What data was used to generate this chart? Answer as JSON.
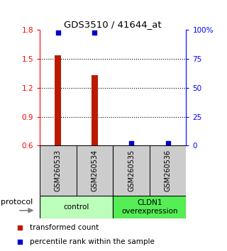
{
  "title": "GDS3510 / 41644_at",
  "samples": [
    "GSM260533",
    "GSM260534",
    "GSM260535",
    "GSM260536"
  ],
  "bar_values": [
    1.535,
    1.33,
    0.605,
    0.605
  ],
  "dot_pcts": [
    0.98,
    0.98,
    0.02,
    0.02
  ],
  "ylim": [
    0.6,
    1.8
  ],
  "yticks_left": [
    0.6,
    0.9,
    1.2,
    1.5,
    1.8
  ],
  "yticks_right": [
    0,
    25,
    50,
    75,
    100
  ],
  "bar_color": "#bb1a00",
  "dot_color": "#0000cc",
  "sample_box_color": "#cccccc",
  "group_info": [
    {
      "label": "control",
      "color": "#bbffbb"
    },
    {
      "label": "CLDN1\noverexpression",
      "color": "#55ee55"
    }
  ],
  "legend_red_label": "transformed count",
  "legend_blue_label": "percentile rank within the sample",
  "protocol_label": "protocol"
}
